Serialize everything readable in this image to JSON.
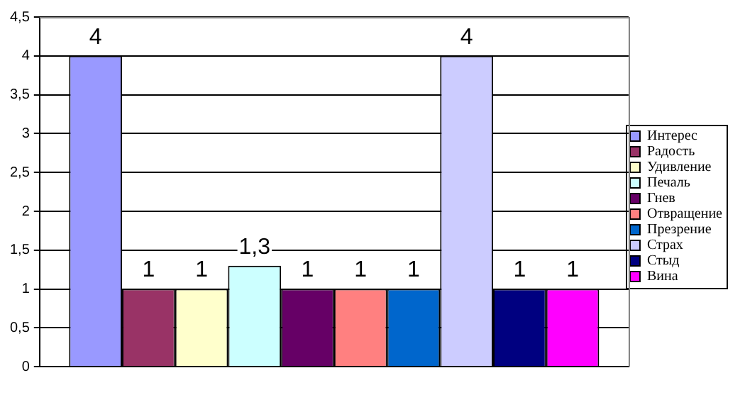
{
  "chart_data": {
    "type": "bar",
    "categories": [
      null
    ],
    "series": [
      {
        "name": "Интерес",
        "color": "#9999ff",
        "values": [
          4
        ],
        "value_labels": [
          "4"
        ]
      },
      {
        "name": "Радость",
        "color": "#993366",
        "values": [
          1
        ],
        "value_labels": [
          "1"
        ]
      },
      {
        "name": "Удивление",
        "color": "#ffffcc",
        "values": [
          1
        ],
        "value_labels": [
          "1"
        ]
      },
      {
        "name": "Печаль",
        "color": "#ccffff",
        "values": [
          1.3
        ],
        "value_labels": [
          "1,3"
        ]
      },
      {
        "name": "Гнев",
        "color": "#660066",
        "values": [
          1
        ],
        "value_labels": [
          "1"
        ]
      },
      {
        "name": "Отвращение",
        "color": "#ff8080",
        "values": [
          1
        ],
        "value_labels": [
          "1"
        ]
      },
      {
        "name": "Презрение",
        "color": "#0066cc",
        "values": [
          1
        ],
        "value_labels": [
          "1"
        ]
      },
      {
        "name": "Страх",
        "color": "#ccccff",
        "values": [
          4
        ],
        "value_labels": [
          "4"
        ]
      },
      {
        "name": "Стыд",
        "color": "#000080",
        "values": [
          1
        ],
        "value_labels": [
          "1"
        ]
      },
      {
        "name": "Вина",
        "color": "#ff00ff",
        "values": [
          1
        ],
        "value_labels": [
          "1"
        ]
      }
    ],
    "ylim": [
      0,
      4.5
    ],
    "yticks": [
      0,
      {
        "value": 0.5,
        "label": "0,5"
      },
      1,
      {
        "value": 1.5,
        "label": "1,5"
      },
      2,
      {
        "value": 2.5,
        "label": "2,5"
      },
      3,
      {
        "value": 3.5,
        "label": "3,5"
      },
      4,
      {
        "value": 4.5,
        "label": "4,5"
      }
    ],
    "grid": "y",
    "legend": "right"
  }
}
